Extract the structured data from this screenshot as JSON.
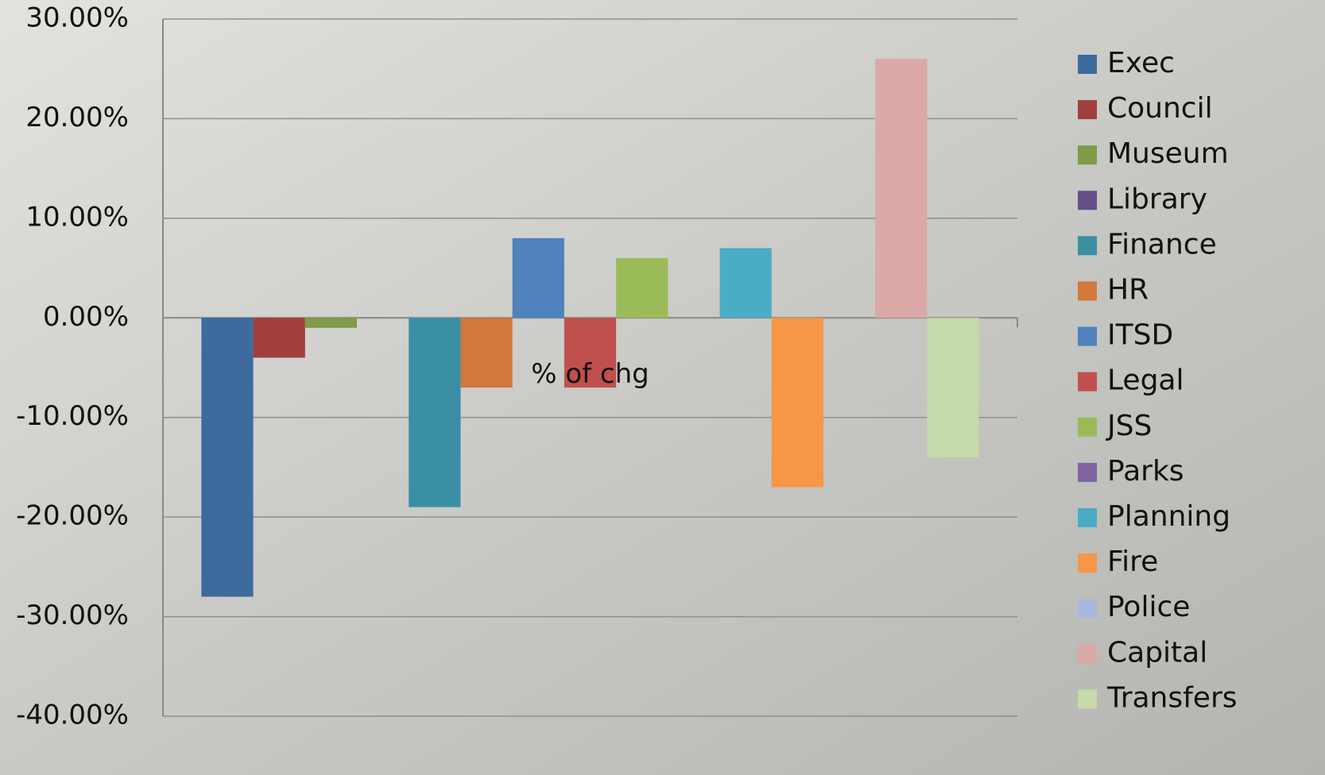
{
  "chart_data": {
    "type": "bar",
    "categories": [
      "% of chg"
    ],
    "series": [
      {
        "name": "Exec",
        "color": "#3f6a9e",
        "values": [
          -28
        ]
      },
      {
        "name": "Council",
        "color": "#a03f3d",
        "values": [
          -4
        ]
      },
      {
        "name": "Museum",
        "color": "#7f9a48",
        "values": [
          -1
        ]
      },
      {
        "name": "Library",
        "color": "#664f87",
        "values": [
          0
        ]
      },
      {
        "name": "Finance",
        "color": "#3a8fa5",
        "values": [
          -19
        ]
      },
      {
        "name": "HR",
        "color": "#d0793a",
        "values": [
          -7
        ]
      },
      {
        "name": "ITSD",
        "color": "#4f81bd",
        "values": [
          8
        ]
      },
      {
        "name": "Legal",
        "color": "#c0504d",
        "values": [
          -7
        ]
      },
      {
        "name": "JSS",
        "color": "#9bbb59",
        "values": [
          6
        ]
      },
      {
        "name": "Parks",
        "color": "#8064a2",
        "values": [
          0
        ]
      },
      {
        "name": "Planning",
        "color": "#4bacc6",
        "values": [
          7
        ]
      },
      {
        "name": "Fire",
        "color": "#f79646",
        "values": [
          -17
        ]
      },
      {
        "name": "Police",
        "color": "#a9b8dc",
        "values": [
          0
        ]
      },
      {
        "name": "Capital",
        "color": "#dba9a8",
        "values": [
          26
        ]
      },
      {
        "name": "Transfers",
        "color": "#c6d9a8",
        "values": [
          -14
        ]
      }
    ],
    "ylim": [
      -40,
      30
    ],
    "yticks": [
      {
        "value": -40,
        "label": "-40.00%"
      },
      {
        "value": -30,
        "label": "-30.00%"
      },
      {
        "value": -20,
        "label": "-20.00%"
      },
      {
        "value": -10,
        "label": "-10.00%"
      },
      {
        "value": 0,
        "label": "0.00%"
      },
      {
        "value": 10,
        "label": "10.00%"
      },
      {
        "value": 20,
        "label": "20.00%"
      },
      {
        "value": 30,
        "label": "30.00%"
      }
    ],
    "grid": true,
    "legend": "right"
  }
}
